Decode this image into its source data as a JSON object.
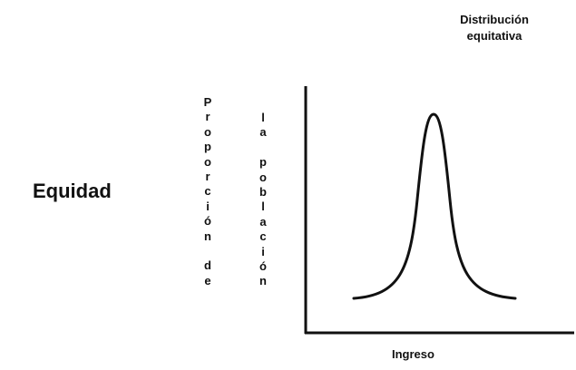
{
  "diagram": {
    "side_label": "Equidad",
    "curve_label_line1": "Distribución",
    "curve_label_line2": "equitativa",
    "ylabel_col1": [
      "P",
      "r",
      "o",
      "p",
      "o",
      "r",
      "c",
      "i",
      "ó",
      "n",
      "",
      "d",
      "e"
    ],
    "ylabel_col2": [
      "l",
      "a",
      "",
      "p",
      "o",
      "b",
      "l",
      "a",
      "c",
      "i",
      "ó",
      "n"
    ],
    "xlabel": "Ingreso"
  }
}
